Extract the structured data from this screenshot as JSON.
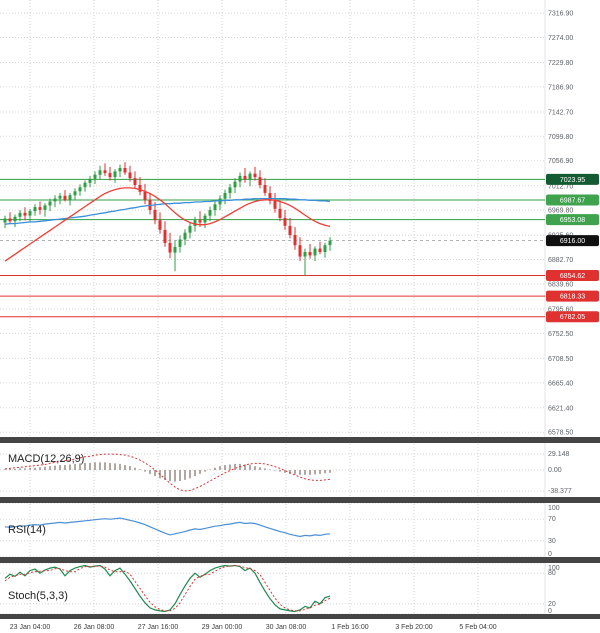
{
  "panels": {
    "macd": {
      "label": "MACD(12,26,9)"
    },
    "rsi": {
      "label": "RSI(14)"
    },
    "stoch": {
      "label": "Stoch(5,3,3)"
    }
  },
  "colors": {
    "background": "#ffffff",
    "grid": "#d6d6d6",
    "axis_text": "#5f6368",
    "date_text": "#3c3c3c",
    "separator": "#454545",
    "plot_edge": "#e3e3e3",
    "candle_up": "#2f9e44",
    "candle_down": "#e03131",
    "macd_hist": "#b0a7a2",
    "macd_signal": "#e03131",
    "rsi_line": "#4c8fd6",
    "stoch_k": "#1d8a4e",
    "stoch_d": "#e03131",
    "current_price_line": "#9a9a9a"
  },
  "chart_data": {
    "type": "candlestick",
    "x_labels": [
      "23 Jan 04:00",
      "26 Jan 08:00",
      "27 Jan 16:00",
      "29 Jan 00:00",
      "30 Jan 08:00",
      "1 Feb 16:00",
      "3 Feb 20:00",
      "5 Feb 04:00"
    ],
    "price_axis_ticks": [
      "7316.90",
      "7274.00",
      "7229.80",
      "7186.90",
      "7142.70",
      "7099.80",
      "7056.90",
      "7012.70",
      "6969.80",
      "6925.60",
      "6882.70",
      "6839.60",
      "6795.60",
      "6752.50",
      "6708.50",
      "6665.40",
      "6621.40",
      "6578.50"
    ],
    "levels": [
      {
        "price": 7023.95,
        "label": "7023.95",
        "badge_color": "#145a32",
        "line_color": "#2f9e44",
        "kind": "resistance"
      },
      {
        "price": 6987.67,
        "label": "6987.67",
        "badge_color": "#3fa34d",
        "line_color": "#2f9e44",
        "kind": "resistance"
      },
      {
        "price": 6953.08,
        "label": "6953.08",
        "badge_color": "#3fa34d",
        "line_color": "#2f9e44",
        "kind": "resistance"
      },
      {
        "price": 6854.62,
        "label": "6854.62",
        "badge_color": "#e03131",
        "line_color": "#e03131",
        "kind": "support"
      },
      {
        "price": 6818.33,
        "label": "6818.33",
        "badge_color": "#e03131",
        "line_color": "#e03131",
        "kind": "support"
      },
      {
        "price": 6782.05,
        "label": "6782.05",
        "badge_color": "#e03131",
        "line_color": "#e03131",
        "kind": "support"
      }
    ],
    "current_price": {
      "value": 6916.0,
      "label": "6916.00",
      "badge_color": "#101010"
    },
    "candles": [
      [
        6948,
        6960,
        6938,
        6955
      ],
      [
        6955,
        6966,
        6945,
        6950
      ],
      [
        6950,
        6962,
        6940,
        6958
      ],
      [
        6958,
        6970,
        6950,
        6965
      ],
      [
        6965,
        6975,
        6952,
        6960
      ],
      [
        6960,
        6972,
        6950,
        6968
      ],
      [
        6968,
        6980,
        6960,
        6975
      ],
      [
        6975,
        6985,
        6962,
        6970
      ],
      [
        6970,
        6982,
        6958,
        6978
      ],
      [
        6978,
        6990,
        6968,
        6985
      ],
      [
        6985,
        6996,
        6975,
        6990
      ],
      [
        6990,
        7000,
        6980,
        6995
      ],
      [
        6995,
        7005,
        6985,
        6988
      ],
      [
        6988,
        7000,
        6978,
        6996
      ],
      [
        6996,
        7008,
        6988,
        7003
      ],
      [
        7003,
        7015,
        6995,
        7010
      ],
      [
        7010,
        7022,
        7002,
        7018
      ],
      [
        7018,
        7030,
        7010,
        7025
      ],
      [
        7025,
        7038,
        7016,
        7032
      ],
      [
        7032,
        7048,
        7024,
        7040
      ],
      [
        7040,
        7052,
        7030,
        7035
      ],
      [
        7035,
        7046,
        7022,
        7028
      ],
      [
        7028,
        7042,
        7018,
        7038
      ],
      [
        7038,
        7050,
        7028,
        7044
      ],
      [
        7044,
        7054,
        7032,
        7036
      ],
      [
        7036,
        7048,
        7020,
        7026
      ],
      [
        7026,
        7038,
        7008,
        7014
      ],
      [
        7014,
        7028,
        6996,
        7002
      ],
      [
        7002,
        7016,
        6980,
        6988
      ],
      [
        6988,
        7000,
        6962,
        6970
      ],
      [
        6970,
        6984,
        6945,
        6952
      ],
      [
        6952,
        6966,
        6928,
        6935
      ],
      [
        6935,
        6950,
        6905,
        6912
      ],
      [
        6912,
        6930,
        6885,
        6895
      ],
      [
        6895,
        6916,
        6862,
        6905
      ],
      [
        6905,
        6925,
        6895,
        6918
      ],
      [
        6918,
        6936,
        6908,
        6930
      ],
      [
        6930,
        6948,
        6920,
        6942
      ],
      [
        6942,
        6958,
        6932,
        6952
      ],
      [
        6952,
        6968,
        6940,
        6948
      ],
      [
        6948,
        6964,
        6938,
        6960
      ],
      [
        6960,
        6976,
        6950,
        6970
      ],
      [
        6970,
        6986,
        6960,
        6980
      ],
      [
        6980,
        6996,
        6970,
        6990
      ],
      [
        6990,
        7006,
        6980,
        7000
      ],
      [
        7000,
        7016,
        6990,
        7010
      ],
      [
        7010,
        7026,
        7000,
        7020
      ],
      [
        7020,
        7036,
        7010,
        7030
      ],
      [
        7030,
        7044,
        7018,
        7024
      ],
      [
        7024,
        7038,
        7012,
        7034
      ],
      [
        7034,
        7046,
        7022,
        7028
      ],
      [
        7028,
        7040,
        7008,
        7014
      ],
      [
        7014,
        7026,
        6995,
        7000
      ],
      [
        7000,
        7012,
        6980,
        6986
      ],
      [
        6986,
        7000,
        6965,
        6972
      ],
      [
        6972,
        6986,
        6950,
        6956
      ],
      [
        6956,
        6970,
        6935,
        6942
      ],
      [
        6942,
        6956,
        6920,
        6926
      ],
      [
        6926,
        6940,
        6900,
        6908
      ],
      [
        6908,
        6922,
        6880,
        6888
      ],
      [
        6888,
        6902,
        6854,
        6896
      ],
      [
        6896,
        6910,
        6884,
        6890
      ],
      [
        6890,
        6906,
        6880,
        6902
      ],
      [
        6902,
        6914,
        6892,
        6896
      ],
      [
        6896,
        6912,
        6886,
        6908
      ],
      [
        6908,
        6922,
        6898,
        6916
      ]
    ],
    "ma_blue": {
      "color": "#3a8fd9",
      "values": [
        6945,
        6946,
        6946,
        6947,
        6948,
        6949,
        6949,
        6950,
        6951,
        6952,
        6953,
        6954,
        6955,
        6956,
        6957,
        6958,
        6959,
        6961,
        6962,
        6964,
        6965,
        6967,
        6968,
        6970,
        6971,
        6973,
        6974,
        6976,
        6977,
        6978,
        6979,
        6980,
        6981,
        6981,
        6982,
        6982,
        6983,
        6983,
        6984,
        6984,
        6985,
        6985,
        6986,
        6986,
        6987,
        6987,
        6988,
        6988,
        6989,
        6989,
        6990,
        6990,
        6990,
        6990,
        6990,
        6990,
        6990,
        6989,
        6989,
        6988,
        6988,
        6987,
        6987,
        6986,
        6986,
        6985
      ]
    },
    "ma_red": {
      "color": "#ef3e36",
      "values": [
        6880,
        6886,
        6892,
        6898,
        6904,
        6910,
        6916,
        6922,
        6928,
        6934,
        6940,
        6946,
        6952,
        6958,
        6964,
        6970,
        6976,
        6982,
        6988,
        6994,
        6999,
        7003,
        7006,
        7008,
        7009,
        7009,
        7008,
        7006,
        7003,
        6999,
        6994,
        6988,
        6981,
        6973,
        6965,
        6958,
        6952,
        6948,
        6945,
        6944,
        6944,
        6946,
        6949,
        6953,
        6958,
        6963,
        6968,
        6973,
        6978,
        6982,
        6985,
        6987,
        6988,
        6988,
        6987,
        6985,
        6982,
        6978,
        6973,
        6967,
        6961,
        6955,
        6950,
        6946,
        6943,
        6941
      ]
    },
    "indicators": {
      "macd": {
        "axis_labels": [
          "29.148",
          "0.00",
          "-38.377"
        ],
        "histogram": [
          1,
          2,
          2,
          3,
          3,
          4,
          4,
          5,
          6,
          7,
          8,
          9,
          9,
          10,
          11,
          12,
          13,
          13,
          14,
          14,
          14,
          13,
          12,
          11,
          9,
          7,
          4,
          1,
          -3,
          -7,
          -11,
          -15,
          -18,
          -20,
          -21,
          -20,
          -18,
          -15,
          -11,
          -7,
          -3,
          1,
          4,
          7,
          9,
          10,
          11,
          11,
          10,
          9,
          7,
          5,
          3,
          1,
          -1,
          -3,
          -5,
          -7,
          -8,
          -9,
          -9,
          -9,
          -8,
          -7,
          -6,
          -5
        ],
        "signal": [
          2,
          3,
          4,
          5,
          6,
          7,
          8,
          9,
          10,
          12,
          14,
          16,
          17,
          18,
          20,
          22,
          24,
          25,
          27,
          28,
          29,
          29,
          29,
          28,
          27,
          25,
          22,
          18,
          13,
          7,
          0,
          -8,
          -16,
          -24,
          -31,
          -36,
          -38,
          -37,
          -34,
          -30,
          -25,
          -20,
          -15,
          -10,
          -5,
          -1,
          3,
          6,
          9,
          11,
          12,
          12,
          11,
          9,
          6,
          3,
          -1,
          -5,
          -9,
          -13,
          -16,
          -18,
          -19,
          -19,
          -18,
          -17
        ]
      },
      "rsi": {
        "axis_labels": [
          "100",
          "70",
          "30",
          "0"
        ],
        "values": [
          56,
          55,
          56,
          58,
          57,
          59,
          60,
          59,
          61,
          62,
          63,
          64,
          63,
          64,
          65,
          66,
          67,
          68,
          69,
          70,
          71,
          70,
          71,
          72,
          70,
          68,
          66,
          63,
          60,
          56,
          52,
          48,
          44,
          41,
          43,
          45,
          47,
          50,
          52,
          51,
          53,
          55,
          57,
          58,
          60,
          61,
          63,
          64,
          62,
          63,
          62,
          59,
          56,
          53,
          50,
          47,
          45,
          42,
          40,
          38,
          40,
          39,
          41,
          40,
          42,
          43
        ]
      },
      "stoch": {
        "axis_labels": [
          "100",
          "80",
          "20",
          "0"
        ],
        "k": [
          70,
          78,
          74,
          82,
          75,
          85,
          88,
          80,
          86,
          90,
          92,
          88,
          75,
          85,
          90,
          93,
          95,
          92,
          94,
          95,
          88,
          75,
          85,
          90,
          78,
          65,
          50,
          35,
          22,
          12,
          8,
          6,
          5,
          8,
          20,
          38,
          55,
          70,
          80,
          72,
          78,
          85,
          90,
          93,
          95,
          94,
          95,
          93,
          85,
          90,
          80,
          62,
          45,
          30,
          18,
          10,
          8,
          6,
          5,
          8,
          15,
          12,
          25,
          20,
          32,
          35
        ],
        "d": [
          65,
          72,
          75,
          78,
          77,
          81,
          83,
          84,
          85,
          85,
          89,
          89,
          85,
          83,
          83,
          89,
          93,
          93,
          94,
          94,
          92,
          86,
          83,
          83,
          84,
          78,
          64,
          50,
          36,
          23,
          14,
          9,
          6,
          6,
          11,
          22,
          38,
          54,
          68,
          74,
          77,
          78,
          84,
          89,
          93,
          94,
          95,
          94,
          91,
          89,
          85,
          77,
          62,
          46,
          31,
          19,
          12,
          8,
          6,
          6,
          9,
          12,
          17,
          19,
          26,
          31
        ]
      }
    }
  }
}
